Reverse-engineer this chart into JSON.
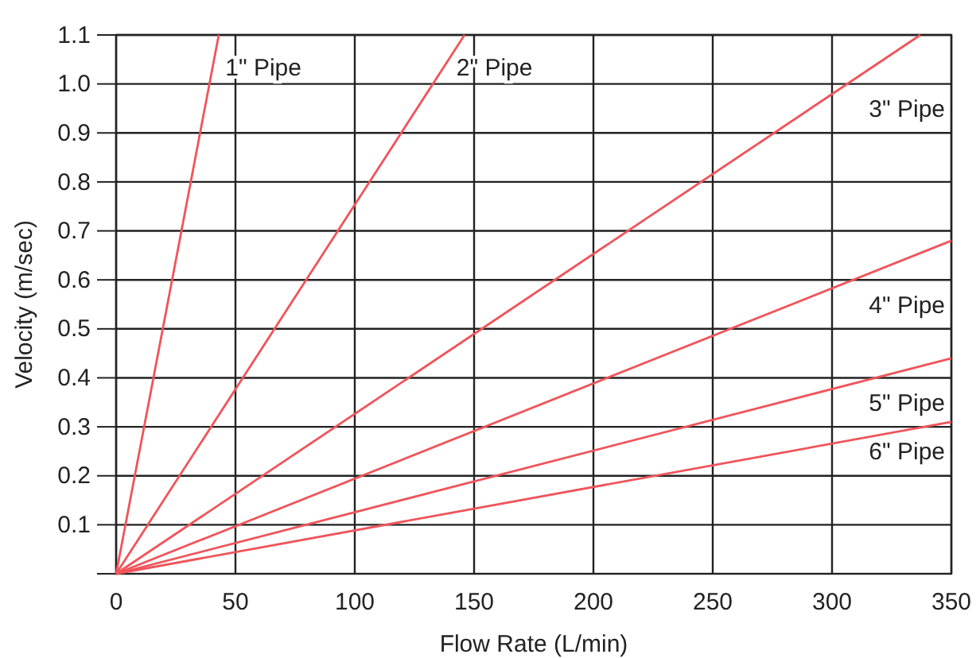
{
  "chart_data": {
    "type": "line",
    "xlabel": "Flow Rate  (L/min)",
    "ylabel": "Velocity (m/sec)",
    "xlim": [
      0,
      350
    ],
    "ylim": [
      0,
      1.1
    ],
    "xticks": [
      0,
      50,
      100,
      150,
      200,
      250,
      300,
      350
    ],
    "yticks": [
      0.1,
      0.2,
      0.3,
      0.4,
      0.5,
      0.6,
      0.7,
      0.8,
      0.9,
      {
        "value": 1.0,
        "label": "1.0"
      },
      1.1
    ],
    "grid": true,
    "marker": "none",
    "line_style": "solid",
    "series": [
      {
        "name": "1\" Pipe",
        "color": "#f0545a",
        "x": [
          0,
          43
        ],
        "values": [
          0,
          1.1
        ]
      },
      {
        "name": "2\" Pipe",
        "color": "#f0545a",
        "x": [
          0,
          146
        ],
        "values": [
          0,
          1.1
        ]
      },
      {
        "name": "3\" Pipe",
        "color": "#f0545a",
        "x": [
          0,
          337
        ],
        "values": [
          0,
          1.1
        ]
      },
      {
        "name": "4\" Pipe",
        "color": "#f0545a",
        "x": [
          0,
          350
        ],
        "values": [
          0,
          0.68
        ]
      },
      {
        "name": "5\" Pipe",
        "color": "#f0545a",
        "x": [
          0,
          350
        ],
        "values": [
          0,
          0.44
        ]
      },
      {
        "name": "6\" Pipe",
        "color": "#f0545a",
        "x": [
          0,
          350
        ],
        "values": [
          0,
          0.31
        ]
      }
    ]
  }
}
